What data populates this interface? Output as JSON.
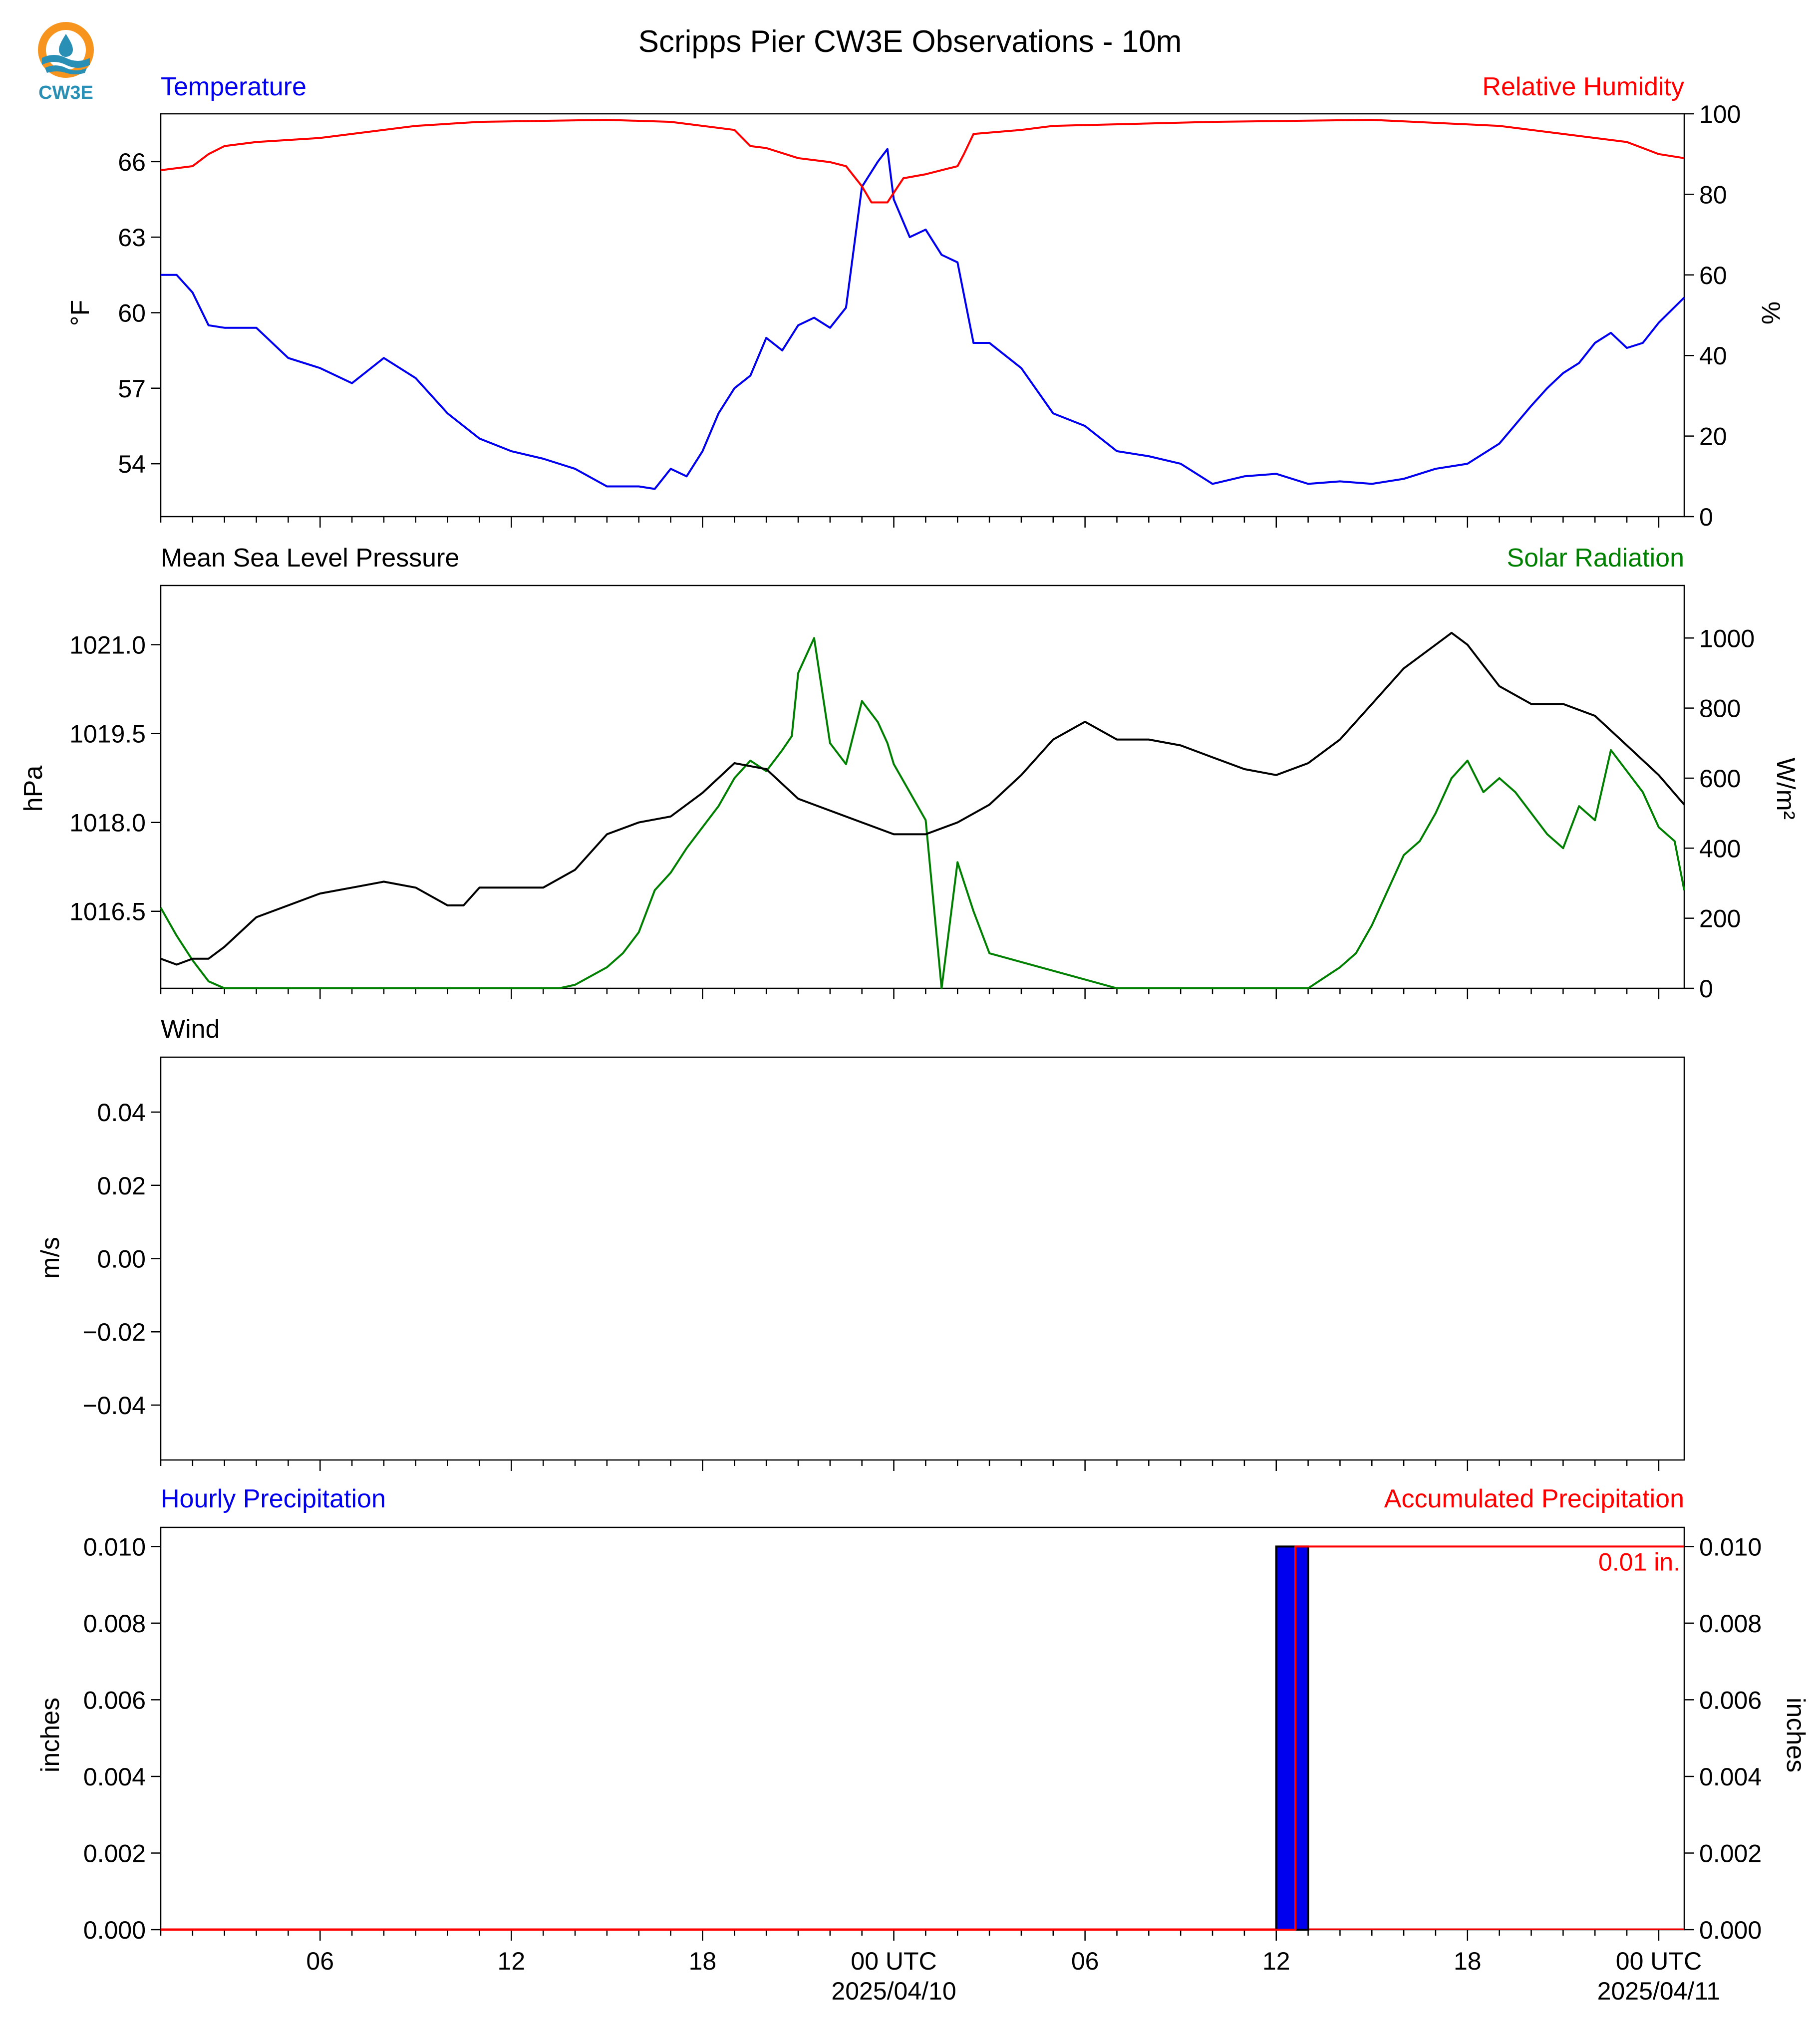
{
  "header": {
    "title": "Scripps Pier CW3E Observations - 10m",
    "logo_text": "CW3E"
  },
  "colors": {
    "blue": "#0000ee",
    "red": "#ff0000",
    "green": "#008000",
    "black": "#000000",
    "logo_orange": "#f7941d",
    "logo_teal": "#2a8fb5"
  },
  "chart_data": [
    {
      "type": "line",
      "panel": "temperature-humidity",
      "left_title": "Temperature",
      "right_title": "Relative Humidity",
      "ylabel": "°F",
      "ylabel_right": "%",
      "ylim": [
        51.9,
        67.9
      ],
      "ylim_right": [
        0,
        100
      ],
      "yticks": [
        54,
        57,
        60,
        63,
        66
      ],
      "yticks_right": [
        0,
        20,
        40,
        60,
        80,
        100
      ],
      "series": [
        {
          "name": "Temperature",
          "axis": "left",
          "color": "#0000ee",
          "x": [
            0,
            0.5,
            1,
            1.5,
            2,
            3,
            4,
            5,
            6,
            7,
            8,
            9,
            10,
            11,
            12,
            13,
            14,
            15,
            15.5,
            16,
            16.5,
            17,
            17.5,
            18,
            18.5,
            19,
            19.5,
            20,
            20.5,
            21,
            21.5,
            22,
            22.5,
            22.8,
            23,
            23.5,
            24,
            24.5,
            25,
            25.5,
            26,
            27,
            28,
            29,
            30,
            31,
            32,
            33,
            34,
            35,
            36,
            37,
            38,
            39,
            40,
            41,
            42,
            43,
            43.5,
            44,
            44.5,
            45,
            45.5,
            46,
            46.5,
            47,
            47.8
          ],
          "y": [
            61.5,
            61.5,
            60.8,
            59.5,
            59.4,
            59.4,
            58.2,
            57.8,
            57.2,
            58.2,
            57.4,
            56,
            55,
            54.5,
            54.2,
            53.8,
            53.1,
            53.1,
            53,
            53.8,
            53.5,
            54.5,
            56,
            57,
            57.5,
            59,
            58.5,
            59.5,
            59.8,
            59.4,
            60.2,
            65,
            66,
            66.5,
            64.5,
            63,
            63.3,
            62.3,
            62,
            58.8,
            58.8,
            57.8,
            56,
            55.5,
            54.5,
            54.3,
            54,
            53.2,
            53.5,
            53.6,
            53.2,
            53.3,
            53.2,
            53.4,
            53.8,
            54,
            54.8,
            56.3,
            57,
            57.6,
            58,
            58.8,
            59.2,
            58.6,
            58.8,
            59.6,
            60.6
          ]
        },
        {
          "name": "Relative Humidity",
          "axis": "right",
          "color": "#ff0000",
          "x": [
            0,
            1,
            1.5,
            2,
            3,
            5,
            8,
            10,
            14,
            16,
            17,
            18,
            18.5,
            19,
            20,
            21,
            21.5,
            22,
            22.3,
            22.8,
            23.3,
            24,
            25,
            25.2,
            25.5,
            27,
            28,
            33,
            38,
            42,
            43,
            44,
            46,
            47,
            47.8
          ],
          "y": [
            86,
            87,
            90,
            92,
            93,
            94,
            97,
            98,
            98.5,
            98,
            97,
            96,
            92,
            91.5,
            89,
            88,
            87,
            82,
            78,
            78,
            84,
            85,
            87,
            90,
            95,
            96,
            97,
            98,
            98.5,
            97,
            96,
            95,
            93,
            90,
            89
          ]
        }
      ]
    },
    {
      "type": "line",
      "panel": "pressure-solar",
      "left_title": "Mean Sea Level Pressure",
      "right_title": "Solar Radiation",
      "ylabel": "hPa",
      "ylabel_right": "W/m²",
      "ylim": [
        1015.2,
        1022.0
      ],
      "ylim_right": [
        0,
        1150
      ],
      "yticks": [
        1016.5,
        1018.0,
        1019.5,
        1021.0
      ],
      "yticks_right": [
        0,
        200,
        400,
        600,
        800,
        1000
      ],
      "series": [
        {
          "name": "Mean Sea Level Pressure",
          "axis": "left",
          "color": "#000000",
          "x": [
            0,
            0.5,
            1,
            1.5,
            2,
            3,
            4,
            5,
            6,
            7,
            8,
            9,
            9.5,
            10,
            11,
            12,
            13,
            14,
            15,
            16,
            17,
            18,
            19,
            20,
            21,
            22,
            23,
            24,
            25,
            26,
            27,
            28,
            29,
            30,
            31,
            32,
            33,
            34,
            35,
            36,
            37,
            38,
            39,
            40,
            40.5,
            41,
            42,
            43,
            44,
            45,
            46,
            47,
            47.8
          ],
          "y": [
            1015.7,
            1015.6,
            1015.7,
            1015.7,
            1015.9,
            1016.4,
            1016.6,
            1016.8,
            1016.9,
            1017.0,
            1016.9,
            1016.6,
            1016.6,
            1016.9,
            1016.9,
            1016.9,
            1017.2,
            1017.8,
            1018.0,
            1018.1,
            1018.5,
            1019.0,
            1018.9,
            1018.4,
            1018.2,
            1018.0,
            1017.8,
            1017.8,
            1018.0,
            1018.3,
            1018.8,
            1019.4,
            1019.7,
            1019.4,
            1019.4,
            1019.3,
            1019.1,
            1018.9,
            1018.8,
            1019.0,
            1019.4,
            1020.0,
            1020.6,
            1021.0,
            1021.2,
            1021.0,
            1020.3,
            1020.0,
            1020.0,
            1019.8,
            1019.3,
            1018.8,
            1018.3
          ]
        },
        {
          "name": "Solar Radiation",
          "axis": "right",
          "color": "#008000",
          "x": [
            0,
            0.5,
            1,
            1.5,
            2,
            4,
            8,
            12,
            12.5,
            13,
            14,
            14.5,
            15,
            15.5,
            16,
            16.5,
            17,
            17.5,
            18,
            18.5,
            19,
            19.5,
            19.8,
            20,
            20.5,
            21,
            21.5,
            22,
            22.5,
            22.8,
            23,
            23.5,
            24,
            24.5,
            25,
            25.5,
            26,
            30,
            36,
            36.5,
            37,
            37.5,
            38,
            38.5,
            39,
            39.5,
            40,
            40.5,
            41,
            41.5,
            42,
            42.5,
            43,
            43.5,
            44,
            44.5,
            45,
            45.5,
            46,
            46.5,
            47,
            47.5,
            47.8
          ],
          "y": [
            230,
            150,
            80,
            20,
            0,
            0,
            0,
            0,
            0,
            10,
            60,
            100,
            160,
            280,
            330,
            400,
            460,
            520,
            600,
            650,
            620,
            680,
            720,
            900,
            1000,
            700,
            640,
            820,
            760,
            700,
            640,
            560,
            480,
            0,
            360,
            220,
            100,
            0,
            0,
            30,
            60,
            100,
            180,
            280,
            380,
            420,
            500,
            600,
            650,
            560,
            600,
            560,
            500,
            440,
            400,
            520,
            480,
            680,
            620,
            560,
            460,
            420,
            280
          ]
        }
      ]
    },
    {
      "type": "line",
      "panel": "wind",
      "left_title": "Wind",
      "ylabel": "m/s",
      "ylim": [
        -0.055,
        0.055
      ],
      "yticks": [
        -0.04,
        -0.02,
        0.0,
        0.02,
        0.04
      ],
      "ytick_labels": [
        "−0.04",
        "−0.02",
        "0.00",
        "0.02",
        "0.04"
      ],
      "series": []
    },
    {
      "type": "bar",
      "panel": "precipitation",
      "left_title": "Hourly Precipitation",
      "right_title": "Accumulated Precipitation",
      "ylabel": "inches",
      "ylabel_right": "inches",
      "ylim": [
        0,
        0.0105
      ],
      "ylim_right": [
        0,
        0.0105
      ],
      "yticks": [
        0.0,
        0.002,
        0.004,
        0.006,
        0.008,
        0.01
      ],
      "yticks_right": [
        0.0,
        0.002,
        0.004,
        0.006,
        0.008,
        0.01
      ],
      "bars": [
        {
          "x_start": 35,
          "x_end": 36,
          "value": 0.01
        }
      ],
      "accumulated": {
        "color": "#ff0000",
        "x": [
          0,
          35.6,
          35.6,
          47.8
        ],
        "y": [
          0,
          0,
          0.01,
          0.01
        ]
      },
      "annotation": "0.01 in."
    }
  ],
  "x_axis": {
    "range_hours": [
      0,
      47.8
    ],
    "ticks": [
      {
        "hour": 5,
        "label": "06",
        "date": ""
      },
      {
        "hour": 11,
        "label": "12",
        "date": ""
      },
      {
        "hour": 17,
        "label": "18",
        "date": ""
      },
      {
        "hour": 23,
        "label": "00 UTC",
        "date": "2025/04/10"
      },
      {
        "hour": 29,
        "label": "06",
        "date": ""
      },
      {
        "hour": 35,
        "label": "12",
        "date": ""
      },
      {
        "hour": 41,
        "label": "18",
        "date": ""
      },
      {
        "hour": 47,
        "label": "00 UTC",
        "date": "2025/04/11"
      }
    ]
  }
}
